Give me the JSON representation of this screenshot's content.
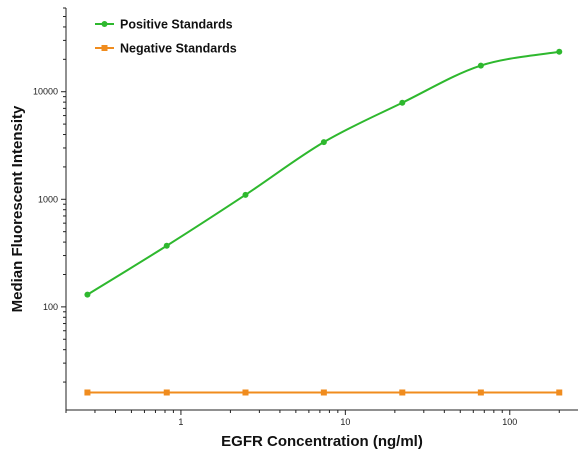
{
  "chart_data": {
    "type": "line",
    "xlabel": "EGFR Concentration (ng/ml)",
    "ylabel": "Median Fluorescent Intensity",
    "x_scale": "log",
    "y_scale": "log",
    "xlim": [
      0.2,
      260
    ],
    "ylim": [
      11,
      60000
    ],
    "x_ticks": [
      1,
      10,
      100
    ],
    "x_tick_labels": [
      "1",
      "10",
      "100"
    ],
    "y_ticks": [
      100,
      1000,
      10000
    ],
    "y_tick_labels": [
      "100",
      "1000",
      "10000"
    ],
    "grid": false,
    "legend_position": "top-left",
    "series": [
      {
        "name": "Positive Standards",
        "color": "#2eb82e",
        "marker": "circle",
        "fit": "smooth-curve",
        "x": [
          0.27,
          0.82,
          2.47,
          7.4,
          22.2,
          66.7,
          200
        ],
        "y": [
          130,
          370,
          1100,
          3400,
          7900,
          17500,
          23500
        ]
      },
      {
        "name": "Negative Standards",
        "color": "#f08c1e",
        "marker": "square",
        "fit": "line",
        "x": [
          0.27,
          0.82,
          2.47,
          7.4,
          22.2,
          66.7,
          200
        ],
        "y": [
          16,
          16,
          16,
          16,
          16,
          16,
          16
        ]
      }
    ]
  }
}
